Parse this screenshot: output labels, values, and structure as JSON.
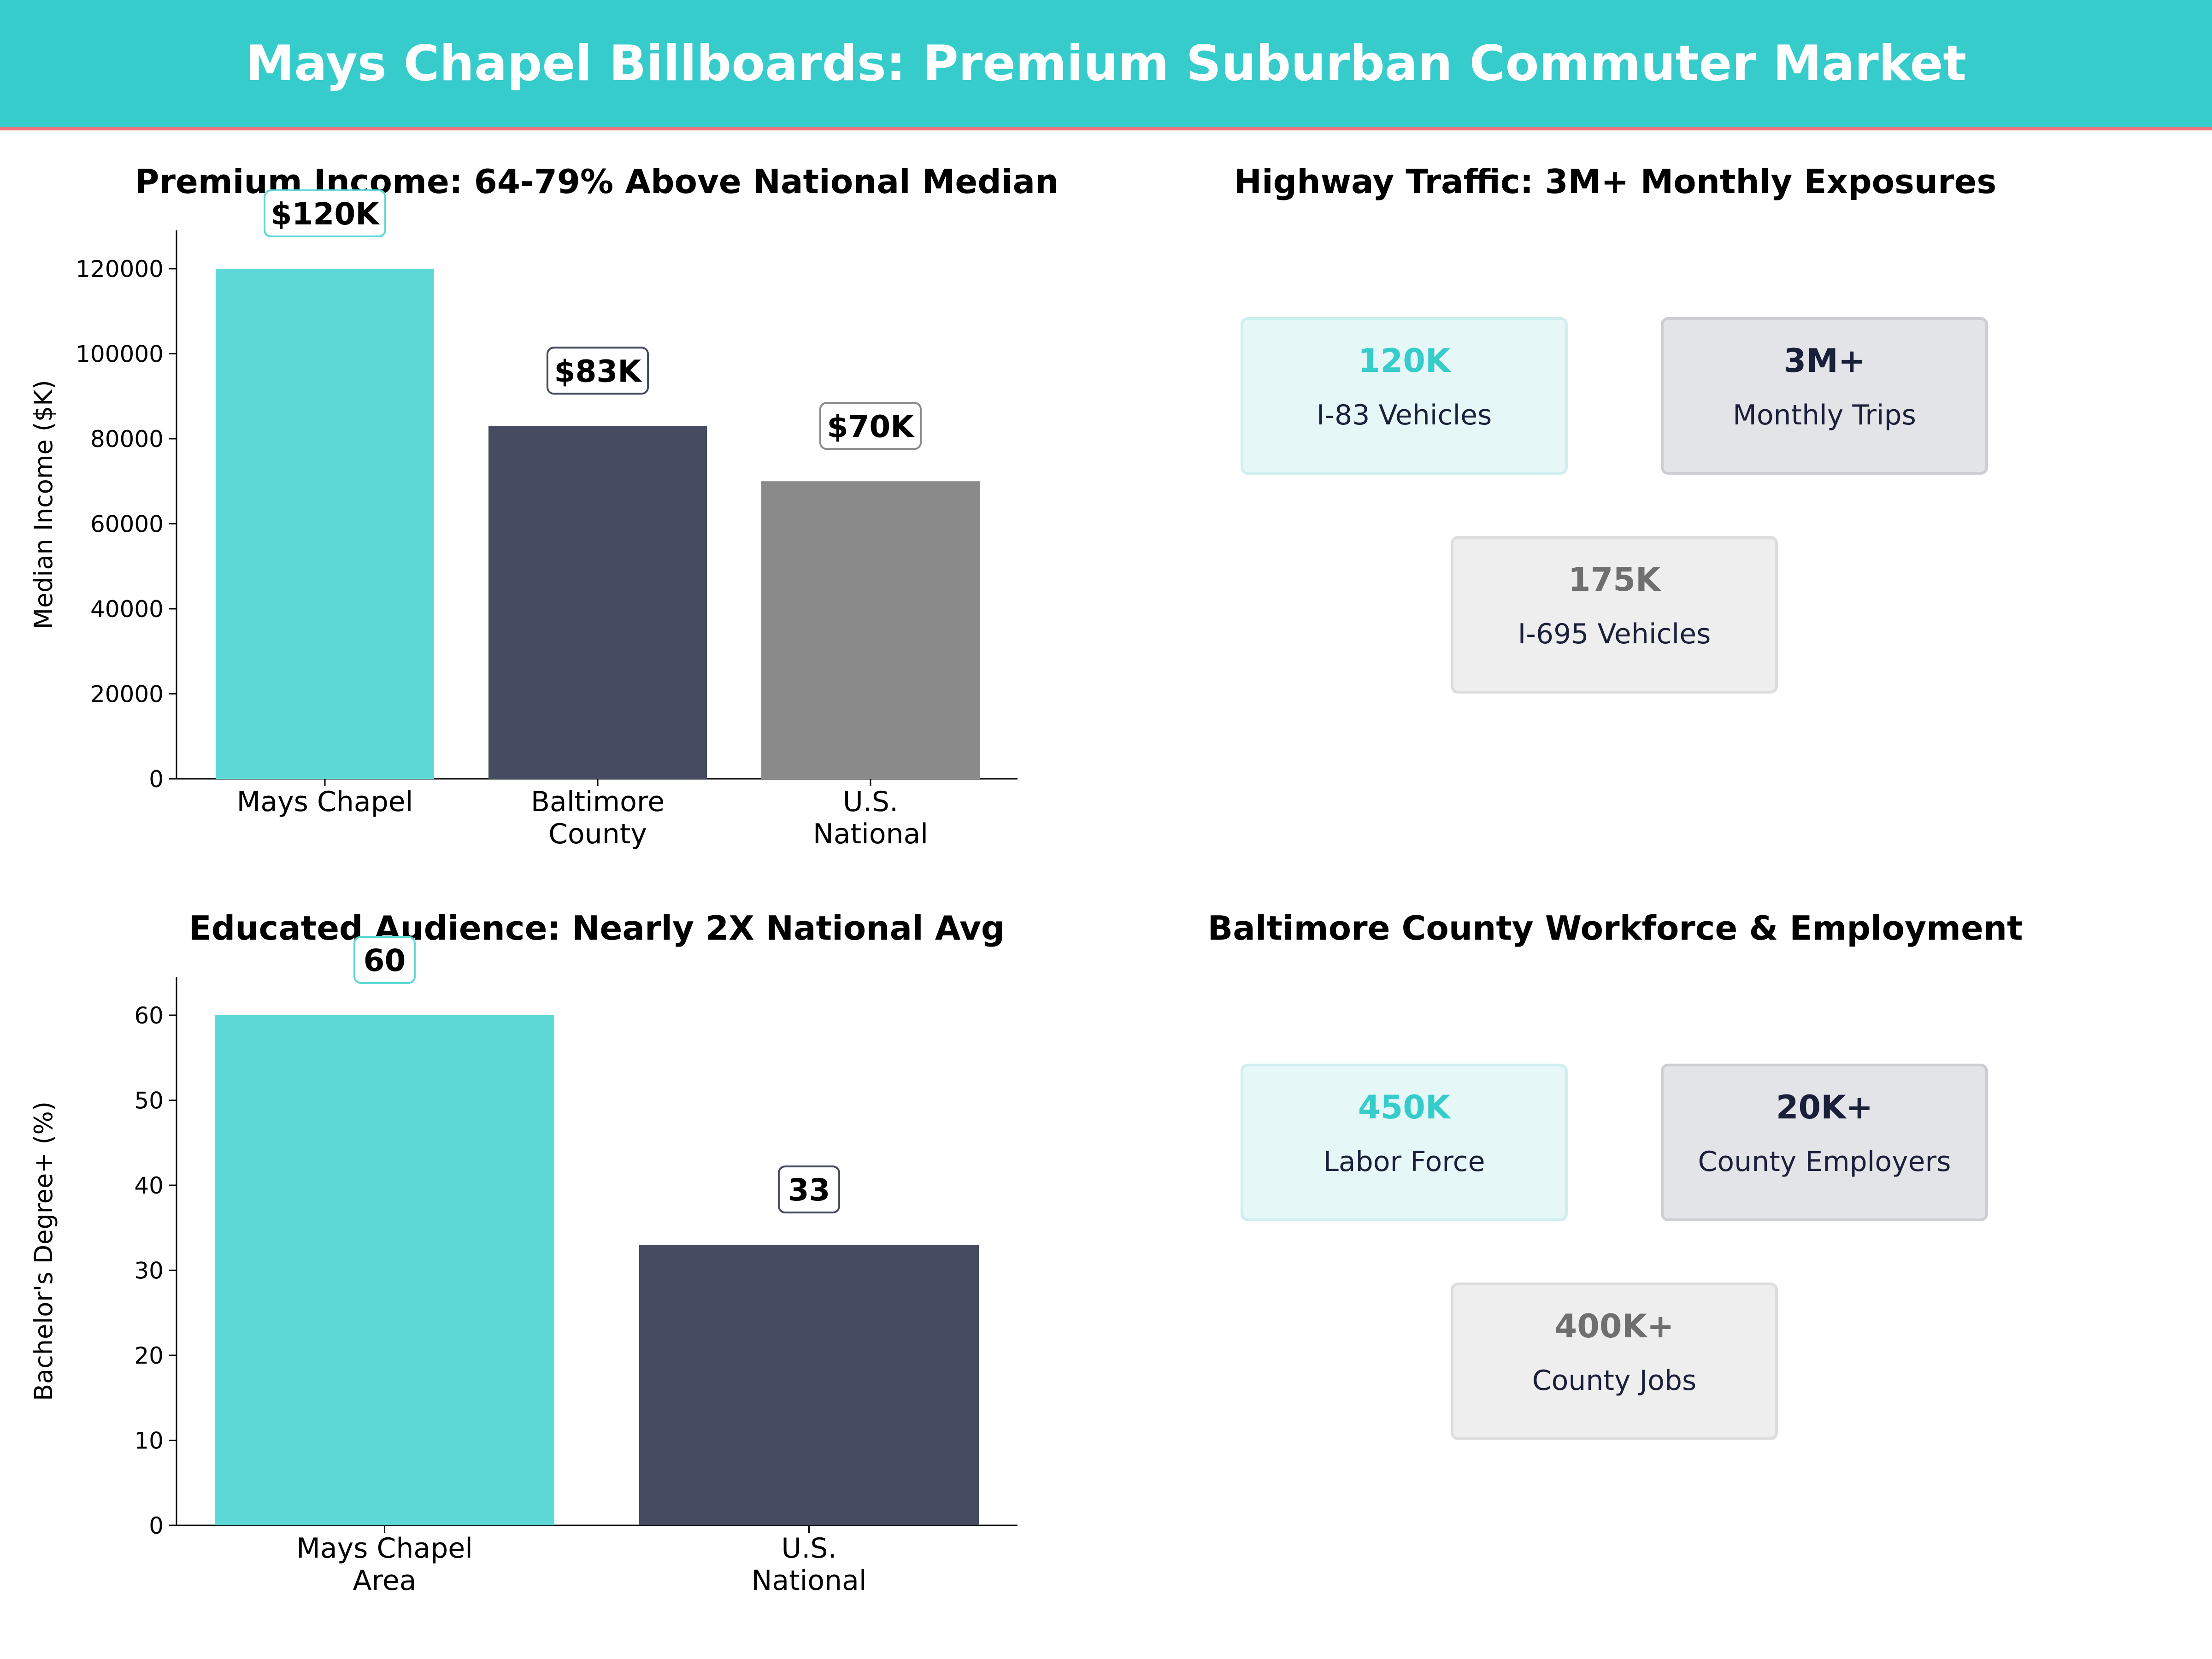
{
  "header": {
    "title": "Mays Chapel Billboards: Premium Suburban Commuter Market"
  },
  "colors": {
    "teal": "#5ED8D6",
    "navy": "#464B62",
    "gray": "#8A8A8A",
    "banner": "#36CCCC",
    "banner_rule": "#F0727A"
  },
  "chart_data": [
    {
      "type": "bar",
      "title": "Premium Income: 64-79% Above National Median",
      "categories": [
        [
          "Mays Chapel"
        ],
        [
          "Baltimore",
          "County"
        ],
        [
          "U.S.",
          "National"
        ]
      ],
      "values": [
        120000,
        83000,
        70000
      ],
      "data_labels": [
        "$120K",
        "$83K",
        "$70K"
      ],
      "ylabel": "Median Income ($K)",
      "ylim": [
        0,
        129000
      ],
      "yticks": [
        0,
        20000,
        40000,
        60000,
        80000,
        100000,
        120000
      ],
      "colors": [
        "teal",
        "navy",
        "gray"
      ],
      "grid": false
    },
    {
      "type": "bar",
      "title": "Educated Audience: Nearly 2X National Avg",
      "categories": [
        [
          "Mays Chapel",
          "Area"
        ],
        [
          "U.S.",
          "National"
        ]
      ],
      "values": [
        60,
        33
      ],
      "data_labels": [
        "60",
        "33"
      ],
      "ylabel": "Bachelor's Degree+ (%)",
      "ylim": [
        0,
        64.5
      ],
      "yticks": [
        0,
        10,
        20,
        30,
        40,
        50,
        60
      ],
      "colors": [
        "teal",
        "navy"
      ],
      "grid": false
    }
  ],
  "traffic": {
    "title": "Highway Traffic: 3M+ Monthly Exposures",
    "cards": [
      {
        "value": "120K",
        "label": "I-83  Vehicles",
        "style": "teal"
      },
      {
        "value": "3M+",
        "label": "Monthly Trips",
        "style": "navy"
      },
      {
        "value": "175K",
        "label": "I-695  Vehicles",
        "style": "gray"
      }
    ]
  },
  "workforce": {
    "title": "Baltimore County Workforce & Employment",
    "cards": [
      {
        "value": "450K",
        "label": "Labor Force",
        "style": "teal"
      },
      {
        "value": "20K+",
        "label": "County Employers",
        "style": "navy"
      },
      {
        "value": "400K+",
        "label": "County Jobs",
        "style": "gray"
      }
    ]
  }
}
